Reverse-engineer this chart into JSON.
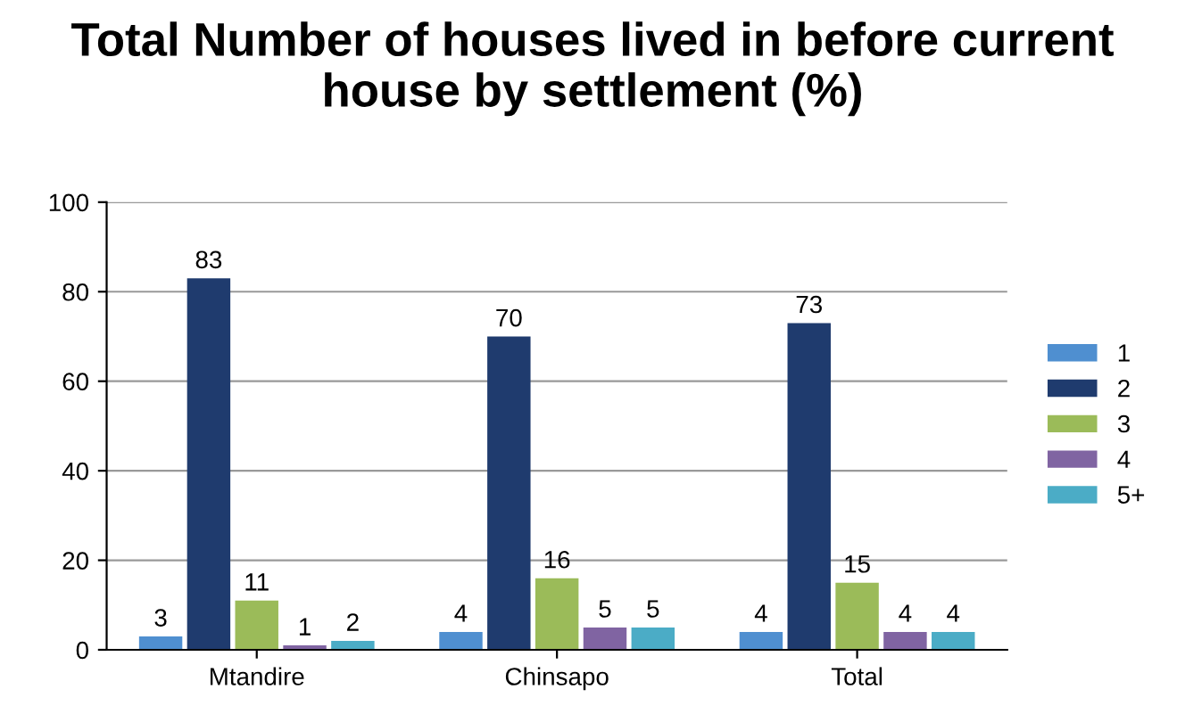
{
  "chart_data": {
    "type": "bar",
    "title": "Total Number of houses lived in before current house by settlement (%)",
    "categories": [
      "Mtandire",
      "Chinsapo",
      "Total"
    ],
    "series": [
      {
        "name": "1",
        "color": "#4f8fd0",
        "values": [
          3,
          4,
          4
        ]
      },
      {
        "name": "2",
        "color": "#1f3b6e",
        "values": [
          83,
          70,
          73
        ]
      },
      {
        "name": "3",
        "color": "#9bbb59",
        "values": [
          11,
          16,
          15
        ]
      },
      {
        "name": "4",
        "color": "#8064a2",
        "values": [
          1,
          5,
          4
        ]
      },
      {
        "name": "5+",
        "color": "#4bacc6",
        "values": [
          2,
          5,
          4
        ]
      }
    ],
    "ylim": [
      0,
      100
    ],
    "yticks": [
      0,
      20,
      40,
      60,
      80,
      100
    ],
    "grid": "y",
    "legend": "right",
    "data_labels": true
  }
}
